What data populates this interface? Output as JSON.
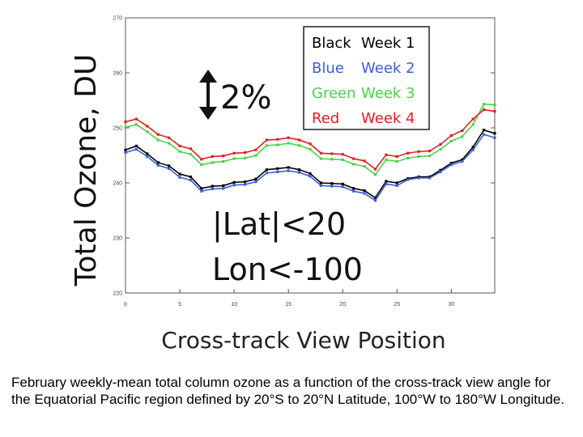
{
  "chart_data": {
    "type": "line",
    "xlabel": "Cross-track View Position",
    "ylabel": "Total Ozone, DU",
    "xlim": [
      0,
      34
    ],
    "ylim": [
      220,
      270
    ],
    "xticks": [
      "0",
      "5",
      "10",
      "15",
      "20",
      "25",
      "30"
    ],
    "yticks": [
      "220",
      "230",
      "240",
      "250",
      "260",
      "270"
    ],
    "grid": false,
    "legend_position": "top-right",
    "legend": [
      {
        "color_word": "Black",
        "week": "Week 1",
        "color": "#000000"
      },
      {
        "color_word": "Blue",
        "week": "Week 2",
        "color": "#3a5fd9"
      },
      {
        "color_word": "Green",
        "week": "Week 3",
        "color": "#4ad34a"
      },
      {
        "color_word": "Red",
        "week": "Week 4",
        "color": "#e02020"
      }
    ],
    "annotations": {
      "percent": "2%",
      "region_line1": "|Lat|<20",
      "region_line2": "Lon<-100"
    },
    "x": [
      0,
      1,
      2,
      3,
      4,
      5,
      6,
      7,
      8,
      9,
      10,
      11,
      12,
      13,
      14,
      15,
      16,
      17,
      18,
      19,
      20,
      21,
      22,
      23,
      24,
      25,
      26,
      27,
      28,
      29,
      30,
      31,
      32,
      33,
      34
    ],
    "series": [
      {
        "name": "Week 1",
        "color": "#000000",
        "values": [
          246,
          246.7,
          245.3,
          243.7,
          243.1,
          241.6,
          241.1,
          239,
          239.4,
          239.5,
          240.1,
          240.2,
          240.7,
          242.4,
          242.6,
          242.8,
          242.4,
          241.7,
          240,
          239.9,
          239.8,
          239,
          238.6,
          237.3,
          240.3,
          240,
          240.8,
          241.1,
          241.1,
          242.3,
          243.6,
          244.2,
          246.5,
          249.6,
          249
        ]
      },
      {
        "name": "Week 2",
        "color": "#3a5fd9",
        "values": [
          245.5,
          246.1,
          244.8,
          243.2,
          242.6,
          241,
          240.5,
          238.5,
          238.9,
          239,
          239.6,
          239.7,
          240.2,
          241.8,
          242,
          242.2,
          241.9,
          241.2,
          239.5,
          239.4,
          239.3,
          238.5,
          238.1,
          236.8,
          239.8,
          239.5,
          240.6,
          240.9,
          240.9,
          242,
          243.3,
          243.9,
          246,
          248.8,
          248.2
        ]
      },
      {
        "name": "Week 3",
        "color": "#4ad34a",
        "values": [
          250.1,
          250.6,
          249.3,
          247.8,
          247.2,
          245.7,
          245.2,
          243.3,
          243.7,
          243.9,
          244.4,
          244.5,
          245,
          246.8,
          246.9,
          247.2,
          246.8,
          246.1,
          244.4,
          244.3,
          244.2,
          243.4,
          243,
          241.5,
          244.2,
          243.9,
          244.5,
          244.8,
          244.9,
          246.1,
          247.6,
          248.4,
          250.6,
          254.3,
          254.2
        ]
      },
      {
        "name": "Week 4",
        "color": "#e02020",
        "values": [
          251.1,
          251.6,
          250.3,
          248.8,
          248.2,
          246.7,
          246.2,
          244.3,
          244.8,
          244.9,
          245.4,
          245.5,
          246,
          247.8,
          247.9,
          248.2,
          247.8,
          247.1,
          245.4,
          245.3,
          245.2,
          244.4,
          244,
          242.5,
          245.1,
          244.8,
          245.4,
          245.7,
          245.8,
          247,
          248.6,
          249.5,
          251.6,
          253.3,
          253
        ]
      }
    ]
  },
  "caption": "February weekly-mean total column ozone as a function of the cross-track view angle for the Equatorial Pacific region defined by 20°S to 20°N Latitude, 100°W to 180°W Longitude."
}
